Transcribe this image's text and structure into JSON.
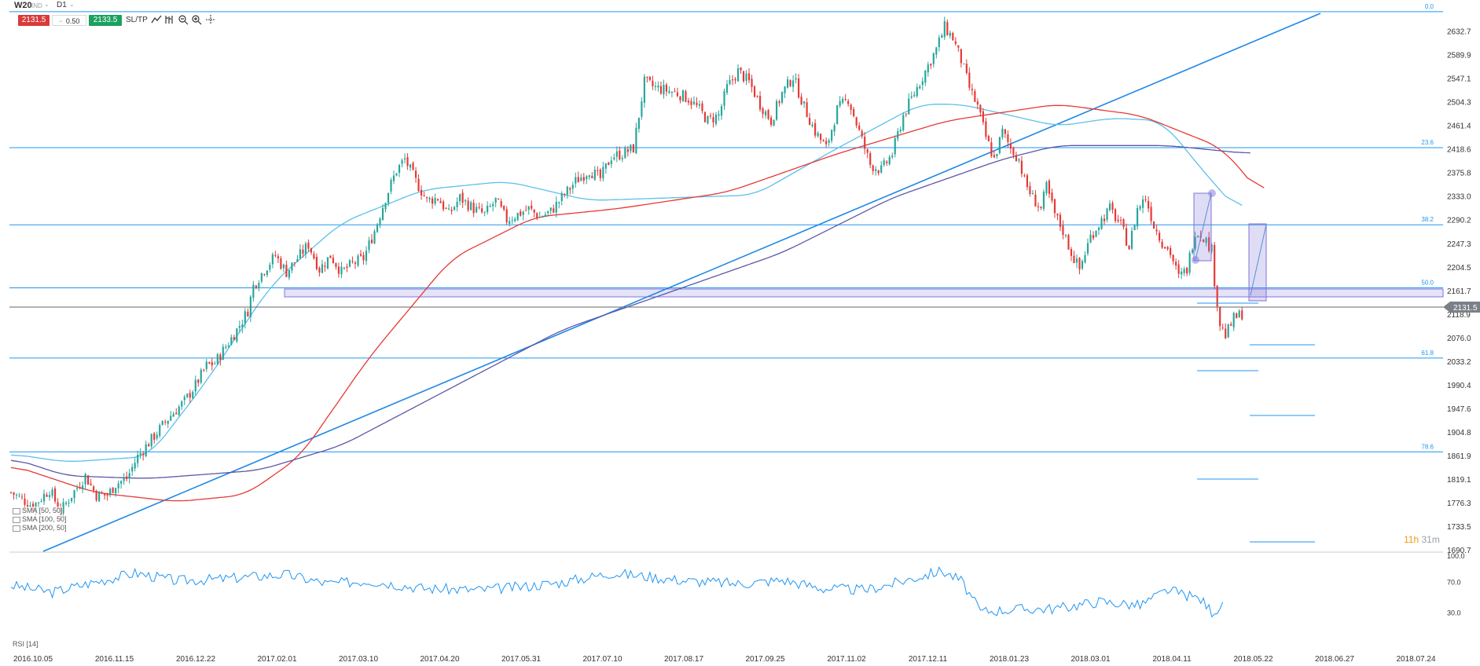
{
  "toolbar": {
    "symbol": "W20",
    "symbol_sub": "IND",
    "timeframe": "D1",
    "sell_price": "2131.5",
    "buy_price": "2133.5",
    "volume": "0.50",
    "sltp_label": "SL/TP"
  },
  "colors": {
    "bull": "#26a69a",
    "bear": "#e53935",
    "hline": "#2196f3",
    "sma50": "#5bc0eb",
    "sma100": "#e53935",
    "sma200": "#5c58a6",
    "rsi": "#2196f3",
    "zone": "#7e75d8"
  },
  "legend": {
    "sma50": "SMA [50, 50]",
    "sma100": "SMA [100, 50]",
    "sma200": "SMA [200, 50]",
    "rsi": "RSI [14]"
  },
  "timer": {
    "hours": "11h",
    "minutes": "31m"
  },
  "current_price_label": "2131.5",
  "chart_data": {
    "type": "candlestick",
    "title": "",
    "ylim": [
      1690.7,
      2675
    ],
    "y_ticks": [
      "2632.7",
      "2589.9",
      "2547.1",
      "2504.3",
      "2461.4",
      "2418.6",
      "2375.8",
      "2333.0",
      "2290.2",
      "2247.3",
      "2204.5",
      "2161.7",
      "2118.9",
      "2076.0",
      "2033.2",
      "1990.4",
      "1947.6",
      "1904.8",
      "1861.9",
      "1819.1",
      "1776.3",
      "1733.5",
      "1690.7"
    ],
    "x_ticks": [
      "2016.10.05",
      "2016.11.15",
      "2016.12.22",
      "2017.02.01",
      "2017.03.10",
      "2017.04.20",
      "2017.05.31",
      "2017.07.10",
      "2017.08.17",
      "2017.09.25",
      "2017.11.02",
      "2017.12.11",
      "2018.01.23",
      "2018.03.01",
      "2018.04.11",
      "2018.05.22",
      "2018.06.27",
      "2018.07.24"
    ],
    "fib_levels": [
      {
        "label": "0.0",
        "price": 2668.0
      },
      {
        "label": "23.6",
        "price": 2421.0
      },
      {
        "label": "38.2",
        "price": 2281.0
      },
      {
        "label": "50.0",
        "price": 2166.5
      },
      {
        "label": "61.8",
        "price": 2039.0
      },
      {
        "label": "78.6",
        "price": 1868.5
      }
    ],
    "current_price": 2131.5,
    "price_path": [
      [
        0,
        1795
      ],
      [
        8,
        1770
      ],
      [
        14,
        1800
      ],
      [
        18,
        1760
      ],
      [
        22,
        1790
      ],
      [
        27,
        1825
      ],
      [
        31,
        1790
      ],
      [
        35,
        1790
      ],
      [
        38,
        1810
      ],
      [
        42,
        1820
      ],
      [
        46,
        1860
      ],
      [
        50,
        1885
      ],
      [
        54,
        1910
      ],
      [
        58,
        1935
      ],
      [
        63,
        1960
      ],
      [
        67,
        1990
      ],
      [
        71,
        2025
      ],
      [
        74,
        2030
      ],
      [
        78,
        2060
      ],
      [
        82,
        2090
      ],
      [
        86,
        2125
      ],
      [
        88,
        2170
      ],
      [
        92,
        2200
      ],
      [
        96,
        2225
      ],
      [
        100,
        2195
      ],
      [
        104,
        2220
      ],
      [
        108,
        2245
      ],
      [
        112,
        2200
      ],
      [
        116,
        2225
      ],
      [
        120,
        2195
      ],
      [
        124,
        2210
      ],
      [
        128,
        2220
      ],
      [
        132,
        2270
      ],
      [
        136,
        2330
      ],
      [
        140,
        2380
      ],
      [
        143,
        2400
      ],
      [
        147,
        2360
      ],
      [
        151,
        2325
      ],
      [
        155,
        2330
      ],
      [
        159,
        2300
      ],
      [
        163,
        2330
      ],
      [
        168,
        2310
      ],
      [
        172,
        2300
      ],
      [
        176,
        2325
      ],
      [
        180,
        2290
      ],
      [
        184,
        2300
      ],
      [
        188,
        2310
      ],
      [
        192,
        2295
      ],
      [
        196,
        2305
      ],
      [
        200,
        2330
      ],
      [
        205,
        2360
      ],
      [
        210,
        2380
      ],
      [
        214,
        2365
      ],
      [
        218,
        2405
      ],
      [
        222,
        2410
      ],
      [
        226,
        2420
      ],
      [
        228,
        2480
      ],
      [
        230,
        2540
      ],
      [
        234,
        2530
      ],
      [
        238,
        2525
      ],
      [
        242,
        2520
      ],
      [
        246,
        2510
      ],
      [
        250,
        2490
      ],
      [
        253,
        2470
      ],
      [
        257,
        2480
      ],
      [
        260,
        2530
      ],
      [
        264,
        2560
      ],
      [
        268,
        2540
      ],
      [
        272,
        2500
      ],
      [
        276,
        2470
      ],
      [
        280,
        2520
      ],
      [
        284,
        2550
      ],
      [
        288,
        2495
      ],
      [
        292,
        2450
      ],
      [
        296,
        2420
      ],
      [
        300,
        2490
      ],
      [
        304,
        2510
      ],
      [
        308,
        2450
      ],
      [
        312,
        2390
      ],
      [
        316,
        2380
      ],
      [
        320,
        2410
      ],
      [
        324,
        2480
      ],
      [
        328,
        2520
      ],
      [
        332,
        2560
      ],
      [
        336,
        2600
      ],
      [
        339,
        2640
      ],
      [
        342,
        2620
      ],
      [
        345,
        2580
      ],
      [
        348,
        2530
      ],
      [
        351,
        2495
      ],
      [
        354,
        2440
      ],
      [
        357,
        2400
      ],
      [
        360,
        2450
      ],
      [
        363,
        2420
      ],
      [
        366,
        2400
      ],
      [
        368,
        2360
      ],
      [
        371,
        2330
      ],
      [
        374,
        2310
      ],
      [
        376,
        2350
      ],
      [
        379,
        2300
      ],
      [
        382,
        2270
      ],
      [
        385,
        2230
      ],
      [
        388,
        2200
      ],
      [
        392,
        2260
      ],
      [
        396,
        2290
      ],
      [
        399,
        2310
      ],
      [
        403,
        2280
      ],
      [
        406,
        2240
      ],
      [
        409,
        2310
      ],
      [
        412,
        2330
      ],
      [
        415,
        2280
      ],
      [
        418,
        2250
      ],
      [
        421,
        2230
      ],
      [
        424,
        2185
      ],
      [
        427,
        2200
      ],
      [
        430,
        2270
      ],
      [
        433,
        2260
      ],
      [
        436,
        2235
      ],
      [
        437,
        2180
      ],
      [
        439,
        2100
      ],
      [
        441,
        2080
      ],
      [
        444,
        2110
      ],
      [
        447,
        2120
      ]
    ],
    "sma50": [
      [
        0,
        1865
      ],
      [
        20,
        1850
      ],
      [
        50,
        1860
      ],
      [
        70,
        1990
      ],
      [
        95,
        2175
      ],
      [
        120,
        2285
      ],
      [
        150,
        2345
      ],
      [
        180,
        2360
      ],
      [
        210,
        2325
      ],
      [
        240,
        2330
      ],
      [
        270,
        2335
      ],
      [
        300,
        2420
      ],
      [
        330,
        2500
      ],
      [
        345,
        2500
      ],
      [
        380,
        2460
      ],
      [
        400,
        2475
      ],
      [
        418,
        2470
      ],
      [
        436,
        2360
      ],
      [
        447,
        2300
      ]
    ],
    "sma100": [
      [
        0,
        1845
      ],
      [
        30,
        1795
      ],
      [
        60,
        1778
      ],
      [
        85,
        1790
      ],
      [
        105,
        1860
      ],
      [
        130,
        2040
      ],
      [
        160,
        2220
      ],
      [
        190,
        2295
      ],
      [
        220,
        2310
      ],
      [
        260,
        2340
      ],
      [
        300,
        2410
      ],
      [
        340,
        2470
      ],
      [
        380,
        2500
      ],
      [
        410,
        2480
      ],
      [
        440,
        2420
      ],
      [
        455,
        2330
      ]
    ],
    "sma200": [
      [
        0,
        1858
      ],
      [
        20,
        1825
      ],
      [
        50,
        1820
      ],
      [
        90,
        1835
      ],
      [
        120,
        1880
      ],
      [
        160,
        1985
      ],
      [
        200,
        2090
      ],
      [
        240,
        2160
      ],
      [
        280,
        2230
      ],
      [
        320,
        2330
      ],
      [
        360,
        2400
      ],
      [
        380,
        2425
      ],
      [
        420,
        2425
      ],
      [
        450,
        2410
      ]
    ],
    "rsi": [
      [
        0,
        66
      ],
      [
        15,
        57
      ],
      [
        30,
        70
      ],
      [
        45,
        82
      ],
      [
        60,
        72
      ],
      [
        75,
        74
      ],
      [
        90,
        78
      ],
      [
        100,
        80
      ],
      [
        115,
        68
      ],
      [
        130,
        72
      ],
      [
        150,
        62
      ],
      [
        170,
        60
      ],
      [
        185,
        64
      ],
      [
        200,
        70
      ],
      [
        218,
        82
      ],
      [
        230,
        78
      ],
      [
        245,
        72
      ],
      [
        265,
        68
      ],
      [
        280,
        73
      ],
      [
        295,
        62
      ],
      [
        310,
        60
      ],
      [
        320,
        68
      ],
      [
        338,
        85
      ],
      [
        345,
        72
      ],
      [
        352,
        32
      ],
      [
        365,
        35
      ],
      [
        380,
        36
      ],
      [
        395,
        45
      ],
      [
        410,
        40
      ],
      [
        420,
        60
      ],
      [
        432,
        48
      ],
      [
        436,
        32
      ],
      [
        440,
        38
      ]
    ],
    "rsi_ylim": [
      0,
      100
    ],
    "rsi_ticks": [
      "100.0",
      "70.0",
      "30.0"
    ]
  }
}
